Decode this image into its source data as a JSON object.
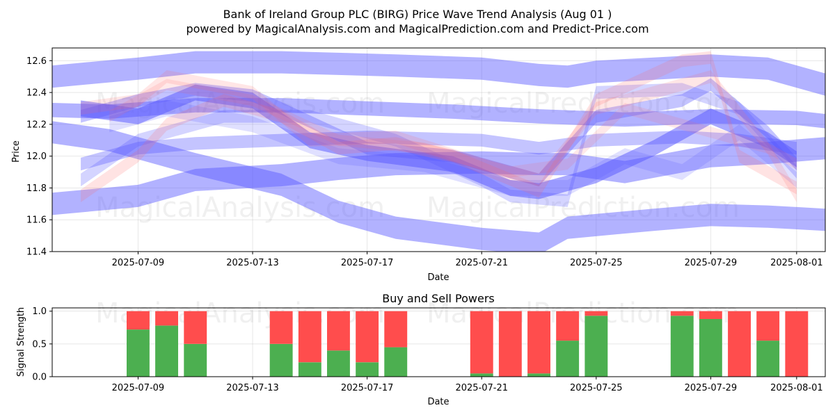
{
  "title": "Bank of Ireland Group PLC (BIRG) Price Wave Trend Analysis (Aug 01 )",
  "subtitle": "powered by MagicalAnalysis.com and MagicalPrediction.com and Predict-Price.com",
  "watermarks": [
    "MagicalAnalysis.com",
    "MagicalPrediction.com"
  ],
  "colors": {
    "band_blue": "#5555ff",
    "band_red": "#ff6666",
    "buy": "#4caf50",
    "sell": "#ff4d4d"
  },
  "chart_data": [
    {
      "type": "area",
      "xlabel": "Date",
      "ylabel": "Price",
      "xlim": [
        "2025-07-06",
        "2025-08-02"
      ],
      "ylim": [
        11.4,
        12.68
      ],
      "x_ticks": [
        "2025-07-09",
        "2025-07-13",
        "2025-07-17",
        "2025-07-21",
        "2025-07-25",
        "2025-07-29",
        "2025-08-01"
      ],
      "y_ticks": [
        11.4,
        11.6,
        11.8,
        12.0,
        12.2,
        12.4,
        12.6
      ],
      "grid": true,
      "series": [
        {
          "color": "blue",
          "opacity": 0.45,
          "width": 0.14,
          "x": [
            "2025-07-06",
            "2025-07-09",
            "2025-07-11",
            "2025-07-14",
            "2025-07-18",
            "2025-07-21",
            "2025-07-23",
            "2025-07-24",
            "2025-07-25",
            "2025-07-29",
            "2025-07-31",
            "2025-08-02"
          ],
          "y": [
            12.5,
            12.55,
            12.59,
            12.59,
            12.57,
            12.55,
            12.51,
            12.5,
            12.53,
            12.57,
            12.55,
            12.45
          ]
        },
        {
          "color": "blue",
          "opacity": 0.45,
          "width": 0.14,
          "x": [
            "2025-07-06",
            "2025-07-09",
            "2025-07-11",
            "2025-07-14",
            "2025-07-16",
            "2025-07-18",
            "2025-07-21",
            "2025-07-23",
            "2025-07-24",
            "2025-07-26",
            "2025-07-29",
            "2025-07-31",
            "2025-08-02"
          ],
          "y": [
            11.7,
            11.75,
            11.85,
            11.88,
            11.92,
            11.95,
            11.96,
            11.95,
            11.95,
            11.9,
            12.0,
            12.02,
            12.05
          ]
        },
        {
          "color": "blue",
          "opacity": 0.45,
          "width": 0.14,
          "x": [
            "2025-07-06",
            "2025-07-08",
            "2025-07-11",
            "2025-07-14",
            "2025-07-16",
            "2025-07-18",
            "2025-07-21",
            "2025-07-23",
            "2025-07-24",
            "2025-07-27",
            "2025-07-29",
            "2025-07-31",
            "2025-08-02"
          ],
          "y": [
            12.15,
            12.1,
            11.95,
            11.82,
            11.65,
            11.55,
            11.48,
            11.45,
            11.55,
            11.6,
            11.63,
            11.62,
            11.6
          ]
        },
        {
          "color": "blue",
          "opacity": 0.45,
          "width": 0.09,
          "x": [
            "2025-07-06",
            "2025-07-08",
            "2025-07-11",
            "2025-07-14",
            "2025-07-17",
            "2025-07-20",
            "2025-07-23",
            "2025-07-26",
            "2025-07-29",
            "2025-08-01",
            "2025-08-02"
          ],
          "y": [
            12.29,
            12.28,
            12.32,
            12.32,
            12.3,
            12.28,
            12.25,
            12.23,
            12.25,
            12.24,
            12.22
          ]
        },
        {
          "color": "blue",
          "opacity": 0.5,
          "width": 0.1,
          "x": [
            "2025-07-07",
            "2025-07-09",
            "2025-07-11",
            "2025-07-13",
            "2025-07-15",
            "2025-07-17",
            "2025-07-20",
            "2025-07-22",
            "2025-07-23",
            "2025-07-25",
            "2025-07-27",
            "2025-07-29",
            "2025-07-31",
            "2025-08-01"
          ],
          "y": [
            12.3,
            12.25,
            12.4,
            12.35,
            12.1,
            12.02,
            11.95,
            11.8,
            11.78,
            11.88,
            12.05,
            12.25,
            12.1,
            11.98
          ]
        },
        {
          "color": "blue",
          "opacity": 0.35,
          "width": 0.08,
          "x": [
            "2025-07-07",
            "2025-07-09",
            "2025-07-11",
            "2025-07-13",
            "2025-07-14",
            "2025-07-17",
            "2025-07-20",
            "2025-07-22",
            "2025-07-23",
            "2025-07-25",
            "2025-07-28",
            "2025-07-29",
            "2025-07-31",
            "2025-08-01"
          ],
          "y": [
            12.25,
            12.35,
            12.42,
            12.38,
            12.3,
            12.05,
            12.0,
            11.9,
            11.85,
            12.25,
            12.35,
            12.45,
            12.15,
            11.95
          ]
        },
        {
          "color": "blue",
          "opacity": 0.35,
          "width": 0.08,
          "x": [
            "2025-07-07",
            "2025-07-09",
            "2025-07-11",
            "2025-07-14",
            "2025-07-17",
            "2025-07-21",
            "2025-07-23",
            "2025-07-25",
            "2025-07-28",
            "2025-07-30",
            "2025-08-01"
          ],
          "y": [
            11.95,
            12.05,
            12.08,
            12.1,
            12.12,
            12.1,
            12.05,
            12.1,
            12.12,
            12.1,
            12.05
          ]
        },
        {
          "color": "blue",
          "opacity": 0.25,
          "width": 0.08,
          "x": [
            "2025-07-07",
            "2025-07-09",
            "2025-07-12",
            "2025-07-15",
            "2025-07-18",
            "2025-07-21",
            "2025-07-22",
            "2025-07-24",
            "2025-07-25",
            "2025-07-28",
            "2025-07-30",
            "2025-08-01"
          ],
          "y": [
            11.85,
            12.1,
            12.25,
            12.25,
            12.1,
            11.85,
            11.75,
            11.72,
            12.4,
            12.42,
            12.3,
            11.9
          ]
        },
        {
          "color": "blue",
          "opacity": 0.18,
          "width": 0.1,
          "x": [
            "2025-07-08",
            "2025-07-10",
            "2025-07-13",
            "2025-07-16",
            "2025-07-19",
            "2025-07-22",
            "2025-07-24",
            "2025-07-26",
            "2025-07-28",
            "2025-07-30",
            "2025-08-01"
          ],
          "y": [
            12.2,
            12.3,
            12.2,
            12.0,
            11.95,
            11.8,
            11.8,
            12.0,
            11.9,
            12.15,
            11.85
          ]
        },
        {
          "color": "red",
          "opacity": 0.18,
          "width": 0.08,
          "x": [
            "2025-07-07",
            "2025-07-09",
            "2025-07-10",
            "2025-07-12",
            "2025-07-14",
            "2025-07-16",
            "2025-07-18",
            "2025-07-20",
            "2025-07-23",
            "2025-07-25",
            "2025-07-28",
            "2025-07-29",
            "2025-07-30",
            "2025-08-01"
          ],
          "y": [
            11.75,
            12.0,
            12.2,
            12.35,
            12.25,
            12.05,
            12.08,
            12.0,
            11.78,
            12.35,
            12.6,
            12.62,
            12.0,
            11.8
          ]
        },
        {
          "color": "red",
          "opacity": 0.16,
          "width": 0.08,
          "x": [
            "2025-07-07",
            "2025-07-09",
            "2025-07-10",
            "2025-07-13",
            "2025-07-15",
            "2025-07-18",
            "2025-07-21",
            "2025-07-23",
            "2025-07-25",
            "2025-07-28",
            "2025-07-29",
            "2025-07-31",
            "2025-08-01"
          ],
          "y": [
            12.3,
            12.35,
            12.5,
            12.4,
            12.1,
            12.12,
            11.95,
            11.85,
            12.3,
            12.45,
            12.5,
            12.05,
            11.75
          ]
        },
        {
          "color": "red",
          "opacity": 0.14,
          "width": 0.07,
          "x": [
            "2025-07-08",
            "2025-07-10",
            "2025-07-13",
            "2025-07-16",
            "2025-07-19",
            "2025-07-22",
            "2025-07-24",
            "2025-07-26",
            "2025-07-29",
            "2025-07-31",
            "2025-08-01"
          ],
          "y": [
            12.25,
            12.45,
            12.35,
            12.1,
            12.05,
            11.9,
            11.95,
            12.3,
            12.15,
            12.05,
            11.95
          ]
        }
      ]
    },
    {
      "type": "bar",
      "title": "Buy and Sell Powers",
      "xlabel": "Date",
      "ylabel": "Signal Strength",
      "ylim": [
        0,
        1.05
      ],
      "y_ticks": [
        0.0,
        0.5,
        1.0
      ],
      "x_ticks": [
        "2025-07-09",
        "2025-07-13",
        "2025-07-17",
        "2025-07-21",
        "2025-07-25",
        "2025-07-29",
        "2025-08-01"
      ],
      "grid": true,
      "categories": [
        "2025-07-09",
        "2025-07-10",
        "2025-07-11",
        "2025-07-14",
        "2025-07-15",
        "2025-07-16",
        "2025-07-17",
        "2025-07-18",
        "2025-07-21",
        "2025-07-22",
        "2025-07-23",
        "2025-07-24",
        "2025-07-25",
        "2025-07-28",
        "2025-07-29",
        "2025-07-30",
        "2025-07-31",
        "2025-08-01"
      ],
      "series": [
        {
          "name": "Buy",
          "values": [
            0.72,
            0.78,
            0.5,
            0.5,
            0.22,
            0.4,
            0.22,
            0.45,
            0.05,
            0.0,
            0.05,
            0.55,
            0.93,
            0.93,
            0.88,
            0.0,
            0.55,
            0.0
          ]
        },
        {
          "name": "Sell",
          "values": [
            0.28,
            0.22,
            0.5,
            0.5,
            0.78,
            0.6,
            0.78,
            0.55,
            0.95,
            1.0,
            0.95,
            0.45,
            0.07,
            0.07,
            0.12,
            1.0,
            0.45,
            1.0
          ]
        }
      ]
    }
  ]
}
